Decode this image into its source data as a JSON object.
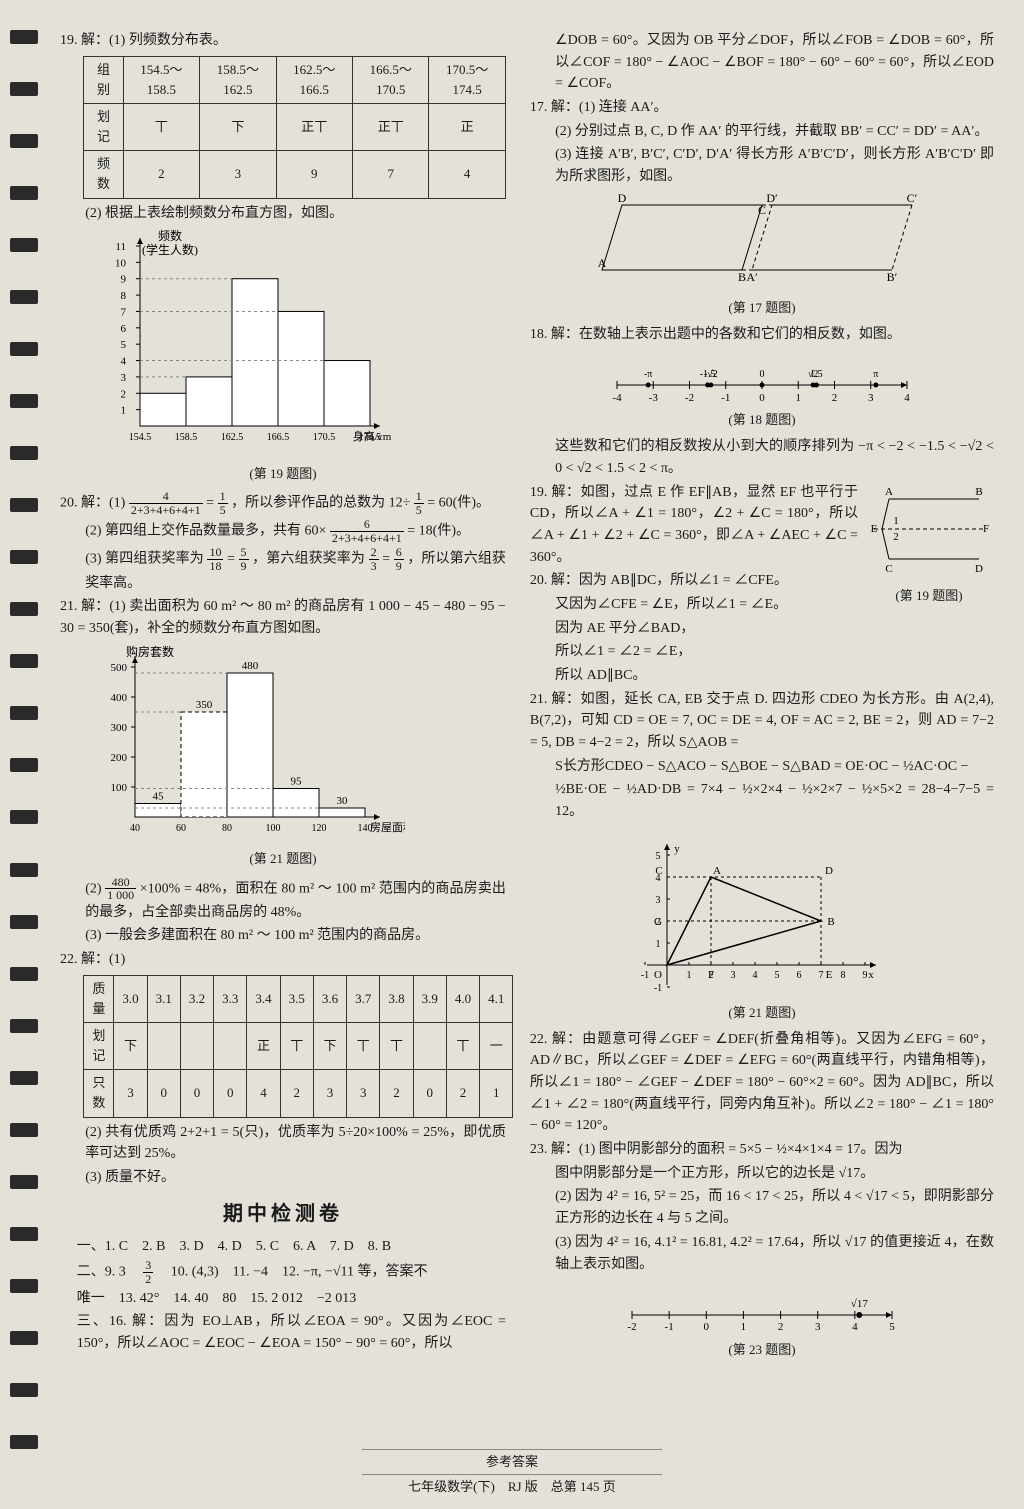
{
  "binder_count": 28,
  "left": {
    "q19": {
      "head": "19. 解：(1) 列频数分布表。",
      "table": {
        "rows": [
          [
            "组别",
            "154.5～158.5",
            "158.5～162.5",
            "162.5～166.5",
            "166.5～170.5",
            "170.5～174.5"
          ],
          [
            "划记",
            "丅",
            "下",
            "正丅",
            "正丅",
            "正"
          ],
          [
            "频数",
            "2",
            "3",
            "9",
            "7",
            "4"
          ]
        ]
      },
      "part2": "(2) 根据上表绘制频数分布直方图，如图。",
      "chart": {
        "type": "histogram",
        "ylabel": "频数\n(学生人数)",
        "xlabel": "身高/cm",
        "bars": [
          {
            "x": "154.5",
            "v": 2
          },
          {
            "x": "158.5",
            "v": 3
          },
          {
            "x": "162.5",
            "v": 9
          },
          {
            "x": "166.5",
            "v": 7
          },
          {
            "x": "170.5",
            "v": 4
          }
        ],
        "ylim": [
          0,
          11
        ],
        "ytick": 1,
        "bar_color": "#ffffff",
        "border": "#000",
        "grid_color": "#888"
      },
      "caption": "(第 19 题图)"
    },
    "q20": {
      "l1": "20. 解：(1) ",
      "frac1n": "4",
      "frac1d": "2+3+4+6+4+1",
      "eq1": "= ",
      "frac2n": "1",
      "frac2d": "5",
      "l1b": "，所以参评作品的总数为 12÷",
      "frac3n": "1",
      "frac3d": "5",
      "l1c": " = 60(件)。",
      "l2a": "(2) 第四组上交作品数量最多，共有 60×",
      "frac4n": "6",
      "frac4d": "2+3+4+6+4+1",
      "l2b": " = 18(件)。",
      "l3a": "(3) 第四组获奖率为 ",
      "frac5n": "10",
      "frac5d": "18",
      "eq3": " = ",
      "frac6n": "5",
      "frac6d": "9",
      "l3b": "，第六组获奖率为 ",
      "frac7n": "2",
      "frac7d": "3",
      "eq4": " = ",
      "frac8n": "6",
      "frac8d": "9",
      "l3c": "，所以第六组获奖率高。"
    },
    "q21": {
      "l1": "21. 解：(1) 卖出面积为 60 m² ～ 80 m² 的商品房有 1 000 − 45 − 480 − 95 − 30 = 350(套)，补全的频数分布直方图如图。",
      "chart": {
        "type": "histogram",
        "ylabel": "购房套数",
        "xlabel": "房屋面积/m²",
        "bars": [
          {
            "x": "40",
            "v": 45,
            "label": "45"
          },
          {
            "x": "60",
            "v": 350,
            "label": "350"
          },
          {
            "x": "80",
            "v": 480,
            "label": "480"
          },
          {
            "x": "100",
            "v": 95,
            "label": "95"
          },
          {
            "x": "120",
            "v": 30,
            "label": "30"
          }
        ],
        "ylim": [
          0,
          500
        ],
        "ytick": 100,
        "xticks": [
          "40",
          "60",
          "80",
          "100",
          "120",
          "140"
        ],
        "bar_color": "#fff",
        "border": "#000",
        "highlight_dash": "#555"
      },
      "caption": "(第 21 题图)",
      "l2a": "(2) ",
      "frac1n": "480",
      "frac1d": "1 000",
      "l2b": "×100% = 48%，面积在 80 m² ～ 100 m² 范围内的商品房卖出的最多，占全部卖出商品房的 48%。",
      "l3": "(3) 一般会多建面积在 80 m² ～ 100 m² 范围内的商品房。"
    },
    "q22": {
      "head": "22. 解：(1)",
      "table": {
        "rows": [
          [
            "质量",
            "3.0",
            "3.1",
            "3.2",
            "3.3",
            "3.4",
            "3.5",
            "3.6",
            "3.7",
            "3.8",
            "3.9",
            "4.0",
            "4.1"
          ],
          [
            "划记",
            "下",
            "",
            "",
            "",
            "正",
            "丅",
            "下",
            "丅",
            "丅",
            "",
            "丅",
            "一"
          ],
          [
            "只数",
            "3",
            "0",
            "0",
            "0",
            "4",
            "2",
            "3",
            "3",
            "2",
            "0",
            "2",
            "1"
          ]
        ]
      },
      "l2": "(2) 共有优质鸡 2+2+1 = 5(只)，优质率为 5÷20×100% = 25%，即优质率可达到 25%。",
      "l3": "(3) 质量不好。"
    },
    "mid_heading": "期中检测卷",
    "ans_row1": "一、1. C　2. B　3. D　4. D　5. C　6. A　7. D　8. B",
    "ans_row2a": "二、9. 3　",
    "frac_a_n": "3",
    "frac_a_d": "2",
    "ans_row2b": "　10. (4,3)　11. −4　12. −π, −√11 等，答案不",
    "ans_row3": "唯一　13. 42°　14. 40　80　15. 2 012　−2 013",
    "ans_row4": "三、16. 解：因为 EO⊥AB，所以∠EOA = 90°。又因为∠EOC = 150°，所以∠AOC = ∠EOC − ∠EOA = 150° − 90° = 60°，所以"
  },
  "right": {
    "cont16": "∠DOB = 60°。又因为 OB 平分∠DOF，所以∠FOB = ∠DOB = 60°，所以∠COF = 180° − ∠AOC − ∠BOF = 180° − 60° − 60° = 60°，所以∠EOD = ∠COF。",
    "q17": {
      "l1": "17. 解：(1) 连接 AA′。",
      "l2": "(2) 分别过点 B, C, D 作 AA′ 的平行线，并截取 BB′ = CC′ = DD′ = AA′。",
      "l3": "(3) 连接 A′B′, B′C′, C′D′, D′A′ 得长方形 A′B′C′D′，则长方形 A′B′C′D′ 即为所求图形，如图。",
      "diagram": {
        "labels": [
          "D",
          "D′",
          "C′",
          "C",
          "A",
          "B",
          "A′",
          "B′"
        ],
        "border": "#000",
        "dash": "#666"
      },
      "caption": "(第 17 题图)"
    },
    "q18": {
      "l1": "18. 解：在数轴上表示出题中的各数和它们的相反数，如图。",
      "numline": {
        "ticks": [
          -4,
          -3,
          -2,
          -1,
          0,
          1,
          2,
          3,
          4
        ],
        "marks": [
          "-π",
          "-1.5",
          "-√2",
          "0",
          "√2",
          "1.5",
          "π"
        ]
      },
      "caption": "(第 18 题图)",
      "l2": "这些数和它们的相反数按从小到大的顺序排列为 −π < −2 < −1.5 < −√2 < 0 < √2 < 1.5 < 2 < π。"
    },
    "q19": {
      "l1": "19. 解：如图，过点 E 作 EF∥AB，显然 EF 也平行于 CD，所以∠A + ∠1 = 180°，∠2 + ∠C = 180°，所以∠A + ∠1 + ∠2 + ∠C = 360°，即∠A + ∠AEC + ∠C = 360°。",
      "diagram": {
        "labels": [
          "A",
          "B",
          "E",
          "F",
          "C",
          "D",
          "1",
          "2"
        ],
        "border": "#000"
      },
      "caption": "(第 19 题图)"
    },
    "q20": {
      "l1": "20. 解：因为 AB∥DC，所以∠1 = ∠CFE。",
      "l2": "又因为∠CFE = ∠E，所以∠1 = ∠E。",
      "l3": "因为 AE 平分∠BAD，",
      "l4": "所以∠1 = ∠2 = ∠E，",
      "l5": "所以 AD∥BC。"
    },
    "q21": {
      "l1": "21. 解：如图，延长 CA, EB 交于点 D. 四边形 CDEO 为长方形。由 A(2,4), B(7,2)，可知 CD = OE = 7, OC = DE = 4, OF = AC = 2, BE = 2，则 AD = 7−2 = 5, DB = 4−2 = 2，所以 S△AOB =",
      "l2": "S长方形CDEO − S△ACO − S△BOE − S△BAD = OE·OC − ½AC·OC −",
      "l3": "½BE·OE − ½AD·DB = 7×4 − ½×2×4 − ½×2×7 − ½×5×2 = 28−4−7−5 = 12。",
      "diagram": {
        "pts": [
          "C",
          "A",
          "D",
          "G",
          "B",
          "O",
          "F",
          "E"
        ],
        "xlim": [
          -1,
          9
        ],
        "ylim": [
          -1,
          5
        ],
        "border": "#000"
      },
      "caption": "(第 21 题图)"
    },
    "q22": {
      "l1": "22. 解：由题意可得∠GEF = ∠DEF(折叠角相等)。又因为∠EFG = 60°，AD∥BC，所以∠GEF = ∠DEF = ∠EFG = 60°(两直线平行，内错角相等)，所以∠1 = 180° − ∠GEF − ∠DEF = 180° − 60°×2 = 60°。因为 AD∥BC，所以∠1 + ∠2 = 180°(两直线平行，同旁内角互补)。所以∠2 = 180° − ∠1 = 180° − 60° = 120°。"
    },
    "q23": {
      "l1": "23. 解：(1) 图中阴影部分的面积 = 5×5 − ½×4×1×4 = 17。因为",
      "l2": "图中阴影部分是一个正方形，所以它的边长是 √17。",
      "l3": "(2) 因为 4² = 16, 5² = 25，而 16 < 17 < 25，所以 4 < √17 < 5，即阴影部分正方形的边长在 4 与 5 之间。",
      "l4": "(3) 因为 4² = 16, 4.1² = 16.81, 4.2² = 17.64，所以 √17 的值更接近 4，在数轴上表示如图。",
      "numline": {
        "ticks": [
          -2,
          -1,
          0,
          1,
          2,
          3,
          4,
          5
        ],
        "mark": "√17",
        "mark_pos": 4.12
      },
      "caption": "(第 23 题图)"
    }
  },
  "footer": {
    "l1": "参考答案",
    "l2": "七年级数学(下)　RJ 版　总第 145 页"
  }
}
